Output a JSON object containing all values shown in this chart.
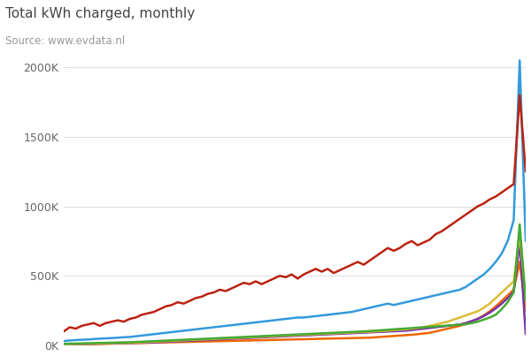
{
  "title": "Total kWh charged, monthly",
  "subtitle": "Source: www.evdata.nl",
  "background_color": "#ffffff",
  "title_color": "#444444",
  "subtitle_color": "#999999",
  "ylim": [
    0,
    2100000
  ],
  "yticks": [
    0,
    500000,
    1000000,
    1500000,
    2000000
  ],
  "ytick_labels": [
    "0K",
    "500K",
    "1000K",
    "1500K",
    "2000K"
  ],
  "series": {
    "red": {
      "color": "#bb2211",
      "linewidth": 1.8
    },
    "blue": {
      "color": "#3399dd",
      "linewidth": 1.8
    },
    "green": {
      "color": "#44aa33",
      "linewidth": 1.8
    },
    "yellow": {
      "color": "#ddbb33",
      "linewidth": 1.8
    },
    "purple": {
      "color": "#7733aa",
      "linewidth": 1.8
    },
    "orange": {
      "color": "#ee6600",
      "linewidth": 1.8
    }
  },
  "red_data": [
    100000,
    130000,
    120000,
    140000,
    150000,
    160000,
    140000,
    160000,
    170000,
    180000,
    170000,
    190000,
    200000,
    220000,
    230000,
    240000,
    260000,
    280000,
    290000,
    310000,
    300000,
    320000,
    340000,
    350000,
    370000,
    380000,
    400000,
    390000,
    410000,
    430000,
    450000,
    440000,
    460000,
    440000,
    460000,
    480000,
    500000,
    490000,
    510000,
    480000,
    510000,
    530000,
    550000,
    530000,
    550000,
    520000,
    540000,
    560000,
    580000,
    600000,
    580000,
    610000,
    640000,
    670000,
    700000,
    680000,
    700000,
    730000,
    750000,
    720000,
    740000,
    760000,
    800000,
    820000,
    850000,
    880000,
    910000,
    940000,
    970000,
    1000000,
    1020000,
    1050000,
    1070000,
    1100000,
    1130000,
    1160000,
    1800000,
    1250000
  ],
  "blue_data": [
    30000,
    35000,
    38000,
    40000,
    42000,
    45000,
    48000,
    50000,
    52000,
    55000,
    58000,
    60000,
    65000,
    70000,
    75000,
    80000,
    85000,
    90000,
    95000,
    100000,
    105000,
    110000,
    115000,
    120000,
    125000,
    130000,
    135000,
    140000,
    145000,
    150000,
    155000,
    160000,
    165000,
    170000,
    175000,
    180000,
    185000,
    190000,
    195000,
    200000,
    200000,
    205000,
    210000,
    215000,
    220000,
    225000,
    230000,
    235000,
    240000,
    250000,
    260000,
    270000,
    280000,
    290000,
    300000,
    290000,
    300000,
    310000,
    320000,
    330000,
    340000,
    350000,
    360000,
    370000,
    380000,
    390000,
    400000,
    420000,
    450000,
    480000,
    510000,
    550000,
    600000,
    660000,
    750000,
    900000,
    2050000,
    750000
  ],
  "green_data": [
    10000,
    12000,
    13000,
    14000,
    15000,
    16000,
    17000,
    18000,
    19000,
    20000,
    21000,
    22000,
    24000,
    26000,
    28000,
    30000,
    32000,
    34000,
    36000,
    38000,
    40000,
    42000,
    44000,
    46000,
    48000,
    50000,
    52000,
    54000,
    56000,
    58000,
    60000,
    62000,
    64000,
    66000,
    68000,
    70000,
    72000,
    74000,
    76000,
    78000,
    80000,
    82000,
    84000,
    86000,
    88000,
    90000,
    92000,
    94000,
    96000,
    98000,
    100000,
    103000,
    106000,
    109000,
    112000,
    115000,
    118000,
    121000,
    124000,
    127000,
    130000,
    133000,
    136000,
    139000,
    142000,
    145000,
    148000,
    151000,
    160000,
    170000,
    185000,
    200000,
    220000,
    260000,
    310000,
    380000,
    870000,
    320000
  ],
  "yellow_data": [
    8000,
    9000,
    10000,
    11000,
    12000,
    13000,
    14000,
    15000,
    16000,
    17000,
    18000,
    19000,
    20000,
    22000,
    24000,
    26000,
    28000,
    30000,
    32000,
    34000,
    36000,
    38000,
    40000,
    42000,
    44000,
    46000,
    48000,
    50000,
    52000,
    54000,
    56000,
    58000,
    60000,
    62000,
    64000,
    66000,
    68000,
    70000,
    72000,
    74000,
    76000,
    78000,
    80000,
    82000,
    84000,
    86000,
    88000,
    90000,
    92000,
    94000,
    96000,
    98000,
    100000,
    103000,
    106000,
    109000,
    112000,
    115000,
    120000,
    125000,
    130000,
    140000,
    150000,
    160000,
    170000,
    185000,
    200000,
    215000,
    230000,
    245000,
    270000,
    300000,
    340000,
    380000,
    420000,
    460000,
    800000,
    340000
  ],
  "purple_data": [
    6000,
    7000,
    8000,
    9000,
    10000,
    11000,
    12000,
    13000,
    14000,
    15000,
    16000,
    17000,
    18000,
    19000,
    20000,
    21000,
    23000,
    25000,
    27000,
    29000,
    31000,
    33000,
    35000,
    37000,
    39000,
    41000,
    43000,
    45000,
    47000,
    49000,
    51000,
    53000,
    55000,
    57000,
    59000,
    61000,
    63000,
    65000,
    67000,
    69000,
    71000,
    73000,
    75000,
    77000,
    79000,
    81000,
    83000,
    85000,
    87000,
    89000,
    91000,
    93000,
    95000,
    97000,
    99000,
    101000,
    103000,
    105000,
    110000,
    115000,
    120000,
    125000,
    130000,
    135000,
    140000,
    145000,
    150000,
    160000,
    175000,
    190000,
    210000,
    235000,
    265000,
    300000,
    340000,
    385000,
    740000,
    80000
  ],
  "orange_data": [
    4000,
    5000,
    6000,
    7000,
    8000,
    9000,
    10000,
    11000,
    12000,
    13000,
    14000,
    15000,
    16000,
    17000,
    18000,
    19000,
    20000,
    21000,
    22000,
    23000,
    24000,
    25000,
    26000,
    27000,
    28000,
    29000,
    30000,
    31000,
    32000,
    33000,
    34000,
    35000,
    36000,
    37000,
    38000,
    39000,
    40000,
    41000,
    42000,
    43000,
    44000,
    45000,
    46000,
    47000,
    48000,
    49000,
    50000,
    51000,
    52000,
    53000,
    54000,
    55000,
    58000,
    61000,
    64000,
    67000,
    70000,
    73000,
    76000,
    80000,
    85000,
    90000,
    100000,
    110000,
    120000,
    130000,
    140000,
    155000,
    170000,
    190000,
    215000,
    245000,
    280000,
    320000,
    360000,
    400000,
    600000,
    250000
  ]
}
